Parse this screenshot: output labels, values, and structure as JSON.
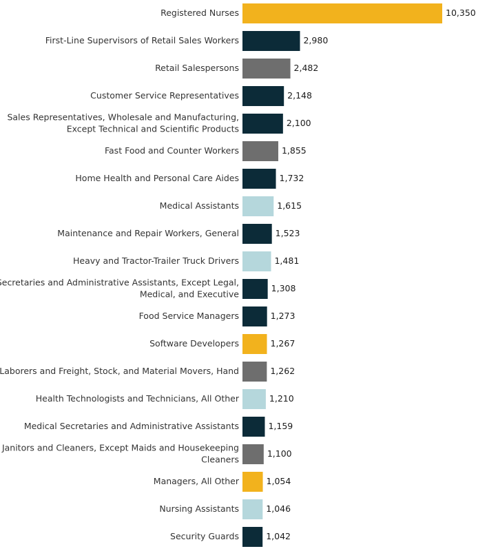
{
  "chart_data": {
    "type": "bar",
    "orientation": "horizontal",
    "title": "",
    "xlabel": "",
    "ylabel": "",
    "xlim": [
      0,
      10350
    ],
    "grid": false,
    "legend": "none",
    "colors": {
      "gold": "#f2b21d",
      "navy": "#0c2b38",
      "gray": "#6e6e6e",
      "light_blue": "#b5d7dc"
    },
    "bars": [
      {
        "label": [
          "Registered Nurses"
        ],
        "value": 10350,
        "value_label": "10,350",
        "color": "gold"
      },
      {
        "label": [
          "First-Line Supervisors of Retail Sales Workers"
        ],
        "value": 2980,
        "value_label": "2,980",
        "color": "navy"
      },
      {
        "label": [
          "Retail Salespersons"
        ],
        "value": 2482,
        "value_label": "2,482",
        "color": "gray"
      },
      {
        "label": [
          "Customer Service Representatives"
        ],
        "value": 2148,
        "value_label": "2,148",
        "color": "navy"
      },
      {
        "label": [
          "Sales Representatives, Wholesale and Manufacturing,",
          "Except Technical and Scientific Products"
        ],
        "value": 2100,
        "value_label": "2,100",
        "color": "navy"
      },
      {
        "label": [
          "Fast Food and Counter Workers"
        ],
        "value": 1855,
        "value_label": "1,855",
        "color": "gray"
      },
      {
        "label": [
          "Home Health and Personal Care Aides"
        ],
        "value": 1732,
        "value_label": "1,732",
        "color": "navy"
      },
      {
        "label": [
          "Medical Assistants"
        ],
        "value": 1615,
        "value_label": "1,615",
        "color": "light_blue"
      },
      {
        "label": [
          "Maintenance and Repair Workers, General"
        ],
        "value": 1523,
        "value_label": "1,523",
        "color": "navy"
      },
      {
        "label": [
          "Heavy and Tractor-Trailer Truck Drivers"
        ],
        "value": 1481,
        "value_label": "1,481",
        "color": "light_blue"
      },
      {
        "label": [
          "Secretaries and Administrative Assistants, Except Legal,",
          "Medical, and Executive"
        ],
        "value": 1308,
        "value_label": "1,308",
        "color": "navy"
      },
      {
        "label": [
          "Food Service Managers"
        ],
        "value": 1273,
        "value_label": "1,273",
        "color": "navy"
      },
      {
        "label": [
          "Software Developers"
        ],
        "value": 1267,
        "value_label": "1,267",
        "color": "gold"
      },
      {
        "label": [
          "Laborers and Freight, Stock, and Material Movers, Hand"
        ],
        "value": 1262,
        "value_label": "1,262",
        "color": "gray"
      },
      {
        "label": [
          "Health Technologists and Technicians, All Other"
        ],
        "value": 1210,
        "value_label": "1,210",
        "color": "light_blue"
      },
      {
        "label": [
          "Medical Secretaries and Administrative Assistants"
        ],
        "value": 1159,
        "value_label": "1,159",
        "color": "navy"
      },
      {
        "label": [
          "Janitors and Cleaners, Except Maids and Housekeeping",
          "Cleaners"
        ],
        "value": 1100,
        "value_label": "1,100",
        "color": "gray"
      },
      {
        "label": [
          "Managers, All Other"
        ],
        "value": 1054,
        "value_label": "1,054",
        "color": "gold"
      },
      {
        "label": [
          "Nursing Assistants"
        ],
        "value": 1046,
        "value_label": "1,046",
        "color": "light_blue"
      },
      {
        "label": [
          "Security Guards"
        ],
        "value": 1042,
        "value_label": "1,042",
        "color": "navy"
      }
    ]
  }
}
